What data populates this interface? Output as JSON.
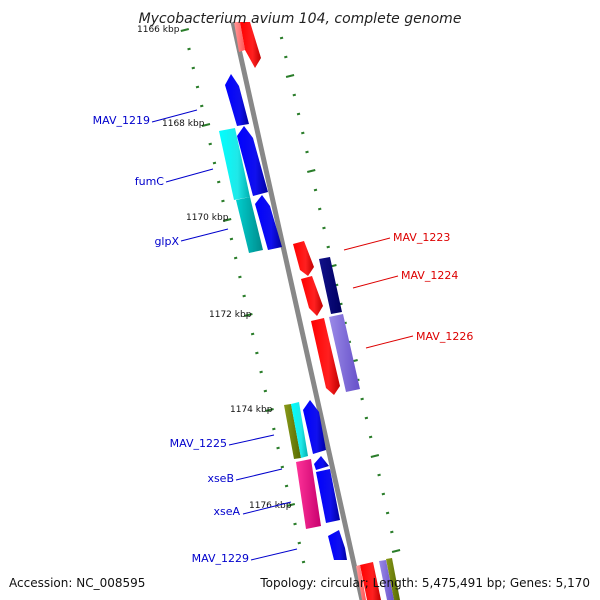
{
  "title": "Mycobacterium avium 104, complete genome",
  "footer": {
    "accession": "Accession: NC_008595",
    "summary": "Topology: circular; Length: 5,475,491 bp; Genes: 5,170"
  },
  "colors": {
    "backbone": "#888888",
    "ticks": "#2a7d2a",
    "forward_label": "#0000cc",
    "reverse_label": "#dd0000"
  },
  "scale_labels": [
    {
      "text": "1166 kbp"
    },
    {
      "text": "1168 kbp"
    },
    {
      "text": "1170 kbp"
    },
    {
      "text": "1172 kbp"
    },
    {
      "text": "1174 kbp"
    },
    {
      "text": "1176 kbp"
    }
  ],
  "gene_labels": [
    {
      "text": "MAV_1219",
      "strand": "left"
    },
    {
      "text": "fumC",
      "strand": "left"
    },
    {
      "text": "glpX",
      "strand": "left"
    },
    {
      "text": "MAV_1223",
      "strand": "right"
    },
    {
      "text": "MAV_1224",
      "strand": "right"
    },
    {
      "text": "MAV_1226",
      "strand": "right"
    },
    {
      "text": "MAV_1225",
      "strand": "left"
    },
    {
      "text": "xseB",
      "strand": "left"
    },
    {
      "text": "xseA",
      "strand": "left"
    },
    {
      "text": "MAV_1229",
      "strand": "left"
    }
  ]
}
